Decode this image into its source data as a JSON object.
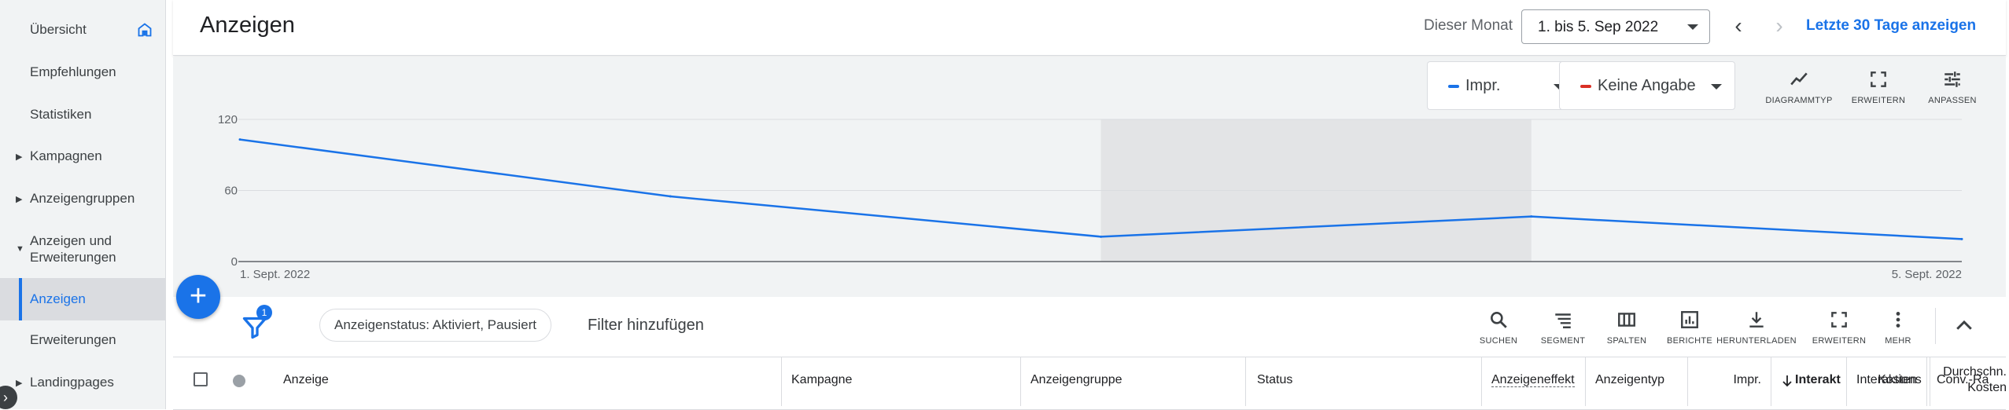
{
  "sidebar": {
    "items": [
      {
        "label": "Übersicht"
      },
      {
        "label": "Empfehlungen"
      },
      {
        "label": "Statistiken"
      },
      {
        "label": "Kampagnen"
      },
      {
        "label": "Anzeigengruppen"
      },
      {
        "label": "Anzeigen und Erweiterungen"
      },
      {
        "label": "Anzeigen"
      },
      {
        "label": "Erweiterungen"
      },
      {
        "label": "Landingpages"
      }
    ]
  },
  "header": {
    "title": "Anzeigen",
    "date_label": "Dieser Monat",
    "date_range": "1. bis 5. Sep 2022",
    "last_30_days": "Letzte 30 Tage anzeigen"
  },
  "chart_controls": {
    "metric1": "Impr.",
    "metric1_color": "#1a73e8",
    "metric2": "Keine Angabe",
    "metric2_color": "#d93025",
    "chart_type": "DIAGRAMMTYP",
    "expand": "ERWEITERN",
    "customize": "ANPASSEN"
  },
  "chart_data": {
    "type": "line",
    "series": [
      {
        "name": "Impr.",
        "values": [
          103,
          55,
          21,
          38,
          19
        ]
      }
    ],
    "x": [
      "1. Sept. 2022",
      "2. Sept. 2022",
      "3. Sept. 2022",
      "4. Sept. 2022",
      "5. Sept. 2022"
    ],
    "x_tick_labels": [
      "1. Sept. 2022",
      "5. Sept. 2022"
    ],
    "y_ticks": [
      0,
      60,
      120
    ],
    "ylim": [
      0,
      120
    ],
    "highlight_range": [
      "3. Sept. 2022",
      "4. Sept. 2022"
    ],
    "grid": true,
    "line_color": "#1a73e8"
  },
  "toolbar": {
    "filter_count": "1",
    "status_chip": "Anzeigenstatus: Aktiviert, Pausiert",
    "add_filter": "Filter hinzufügen",
    "tools": [
      {
        "label": "SUCHEN"
      },
      {
        "label": "SEGMENT"
      },
      {
        "label": "SPALTEN"
      },
      {
        "label": "BERICHTE"
      },
      {
        "label": "HERUNTERLADEN"
      },
      {
        "label": "ERWEITERN"
      },
      {
        "label": "MEHR"
      }
    ]
  },
  "table": {
    "columns": [
      {
        "label": "Anzeige"
      },
      {
        "label": "Kampagne"
      },
      {
        "label": "Anzeigengruppe"
      },
      {
        "label": "Status"
      },
      {
        "label": "Anzeigeneffekt"
      },
      {
        "label": "Anzeigentyp"
      },
      {
        "label": "Impr."
      },
      {
        "label": "Interakt"
      },
      {
        "label": "Interaktions"
      },
      {
        "label": "Durchschn. Kosten"
      },
      {
        "label": "Kosten"
      },
      {
        "label": "Conv.-Ra"
      }
    ]
  }
}
